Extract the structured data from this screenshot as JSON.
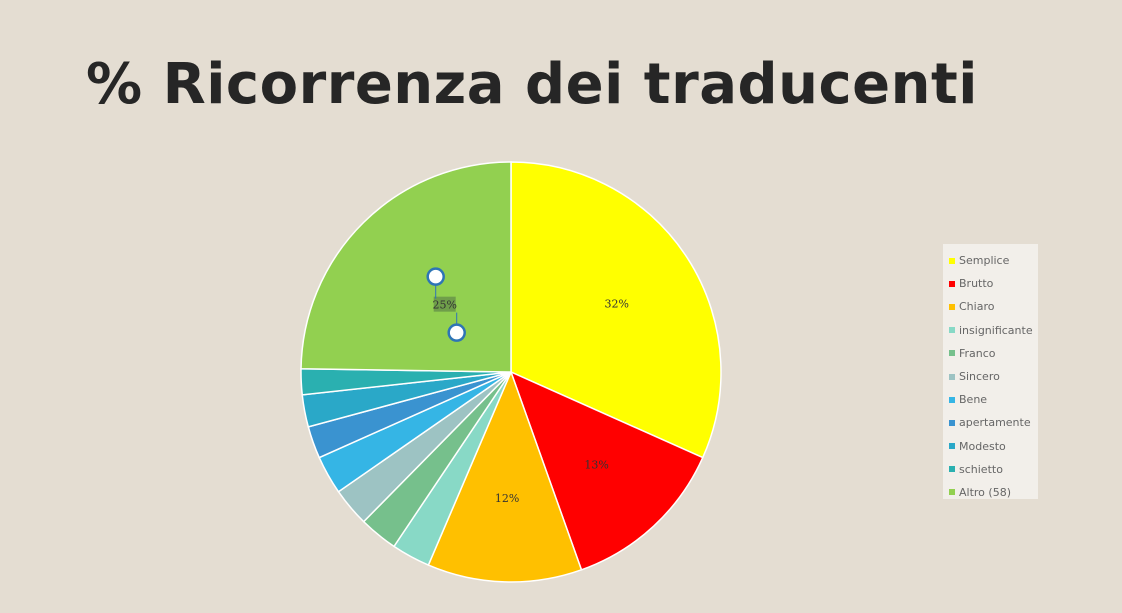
{
  "slide": {
    "title": "% Ricorrenza dei traducenti"
  },
  "chart_data": {
    "type": "pie",
    "title": "",
    "categories": [
      "Semplice",
      "Brutto",
      "Chiaro",
      "insignificante",
      "Franco",
      "Sincero",
      "Bene",
      "apertamente",
      "Modesto",
      "schietto",
      "Altro (58)"
    ],
    "values": [
      32,
      13,
      12,
      3,
      3,
      3,
      3,
      2.5,
      2.5,
      2,
      25
    ],
    "data_labels": [
      "32%",
      "13%",
      "12%",
      "",
      "",
      "",
      "",
      "",
      "",
      "",
      "25%"
    ],
    "colors": [
      "#ffff00",
      "#ff0000",
      "#ffc000",
      "#88d9c6",
      "#76c08c",
      "#9dc3c3",
      "#35b5e5",
      "#3a93d0",
      "#2aa8c8",
      "#2ab0b0",
      "#92d050"
    ],
    "side_colors": [
      "#ffff00",
      "#ff0000",
      "#ffc000",
      "#7ccfbf",
      "#5fae73",
      "#8fb9b9",
      "#2ba0d0",
      "#2a7fb8",
      "#1d8fb0",
      "#1f8f8f",
      "#92d050"
    ],
    "legend_placement": "right",
    "selected_label": "Altro (58)"
  }
}
